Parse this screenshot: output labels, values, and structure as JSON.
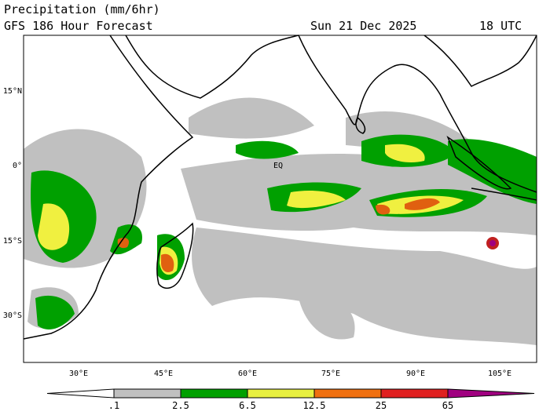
{
  "header": {
    "title": "Precipitation (mm/6hr)",
    "subtitle": "GFS 186 Hour Forecast",
    "date": "Sun 21 Dec 2025",
    "time": "18 UTC"
  },
  "map": {
    "lat_labels": [
      "15°N",
      "0°",
      "15°S",
      "30°S"
    ],
    "lon_labels": [
      "30°E",
      "45°E",
      "60°E",
      "75°E",
      "90°E",
      "105°E"
    ],
    "equator_label": "EQ"
  },
  "colorbar": {
    "labels": [
      ".1",
      "2.5",
      "6.5",
      "12.5",
      "25",
      "65"
    ]
  }
}
